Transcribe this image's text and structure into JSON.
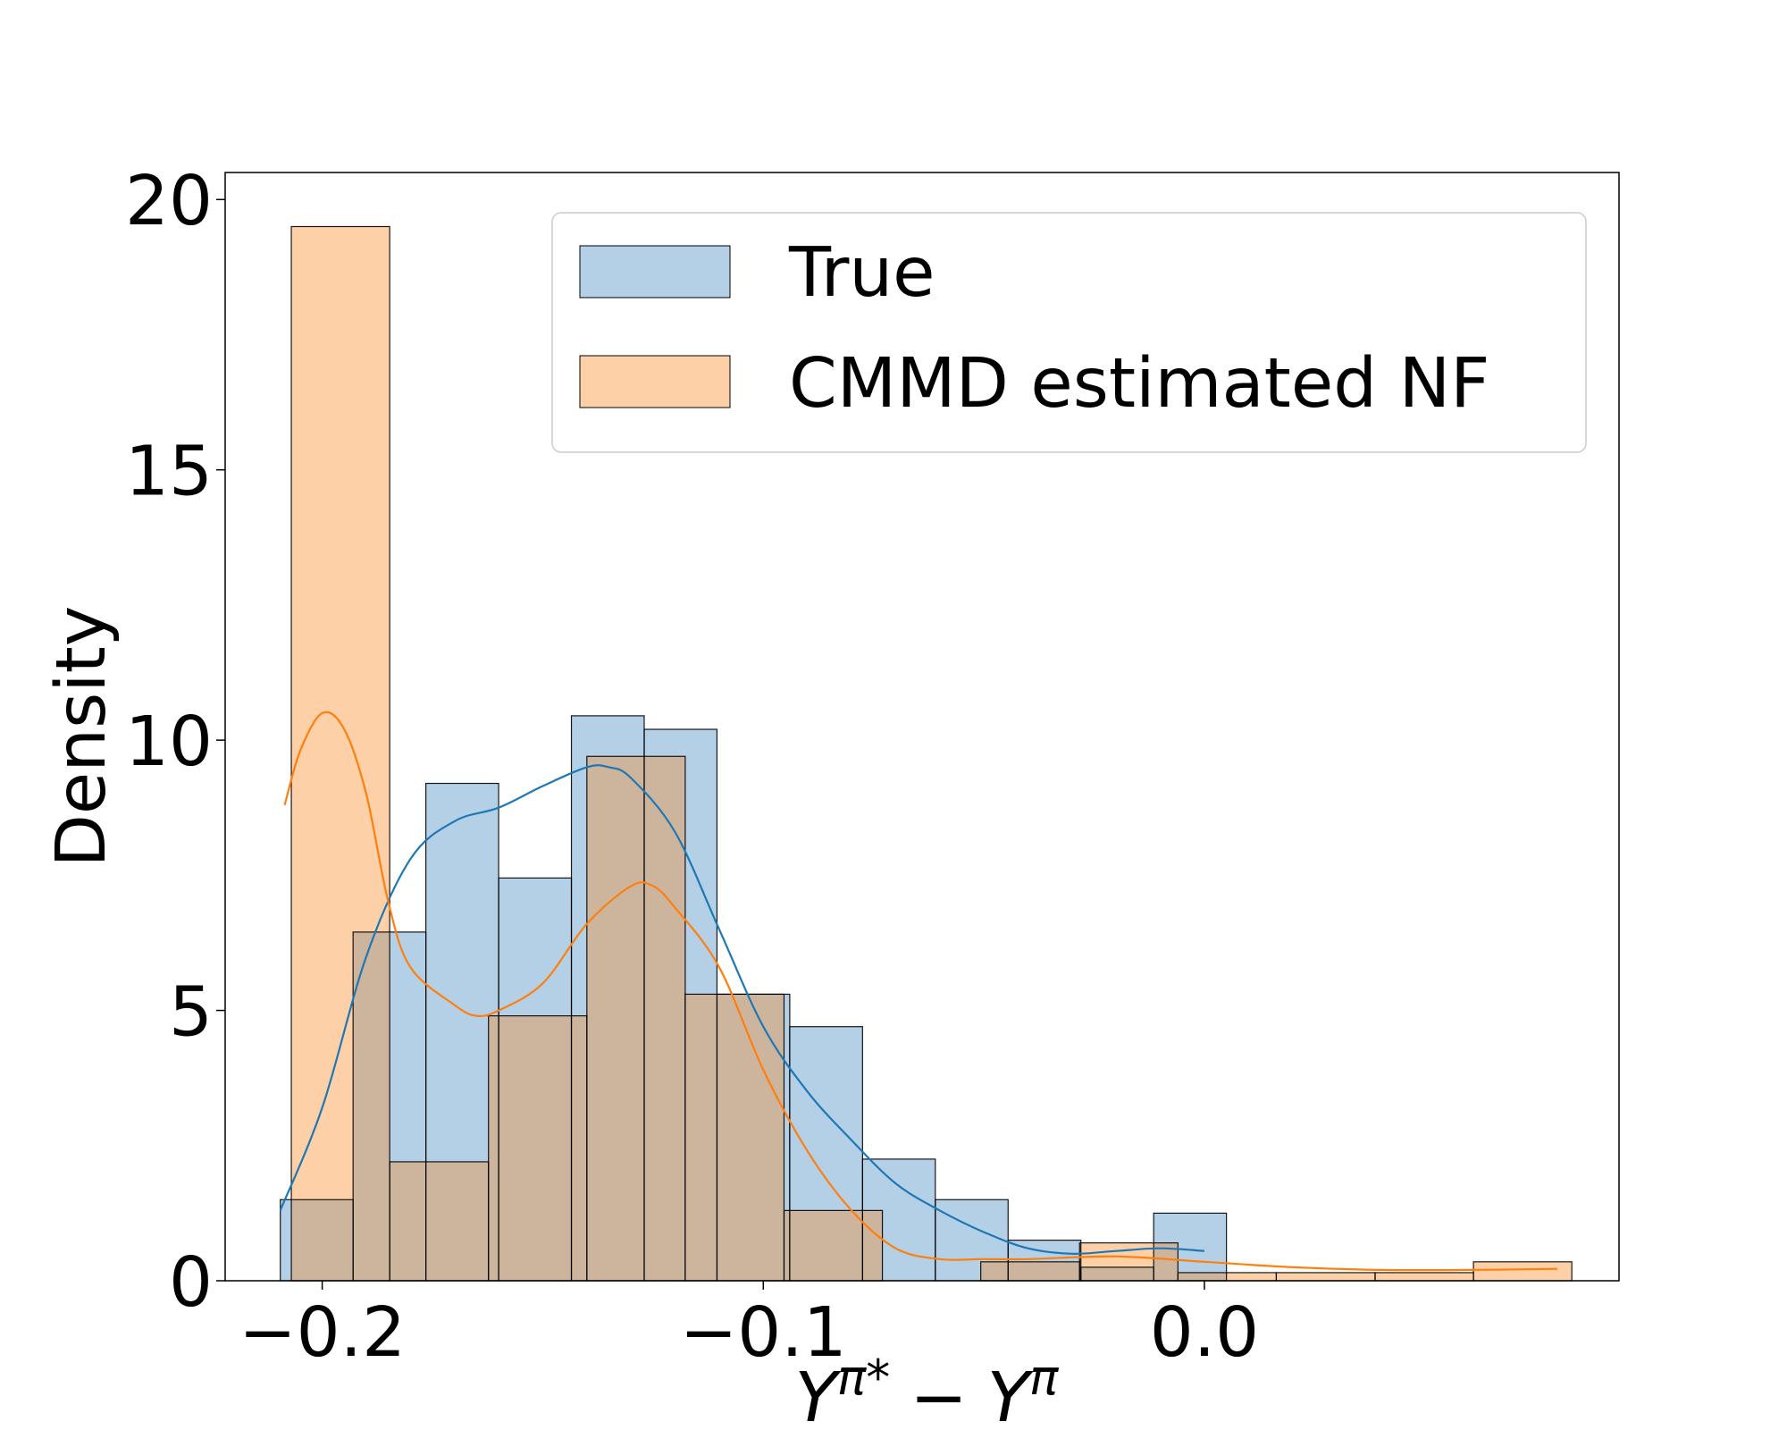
{
  "chart_data": {
    "type": "histogram",
    "title": "",
    "xlabel": {
      "base": "Y",
      "sup1": "π*",
      "minus": "−",
      "base2": "Y",
      "sup2": "π"
    },
    "ylabel": "Density",
    "xlim": [
      -0.222,
      0.094
    ],
    "ylim": [
      0,
      20.5
    ],
    "xticks": [
      -0.2,
      -0.1,
      0.0
    ],
    "xtick_labels": [
      "−0.2",
      "−0.1",
      "0.0"
    ],
    "yticks": [
      0,
      5,
      10,
      15,
      20
    ],
    "ytick_labels": [
      "0",
      "5",
      "10",
      "15",
      "20"
    ],
    "grid": false,
    "legend_position": "top-right",
    "colors": {
      "true_fill": "#b4d0e6",
      "nf_fill": "#fdd0a8",
      "overlap_fill": "#cdb59d",
      "true_line": "#1f77b4",
      "nf_line": "#ff7f0e",
      "edge": "#000000"
    },
    "series": [
      {
        "name": "True",
        "bin_edges": [
          -0.2095,
          -0.193,
          -0.1765,
          -0.16,
          -0.1435,
          -0.127,
          -0.1105,
          -0.094,
          -0.0775,
          -0.061,
          -0.0445,
          -0.028,
          -0.0115,
          0.005
        ],
        "values": [
          1.5,
          6.45,
          9.2,
          7.45,
          10.45,
          10.2,
          5.3,
          4.7,
          2.25,
          1.5,
          0.75,
          0.25,
          1.25
        ],
        "kde": [
          [
            -0.2095,
            1.3
          ],
          [
            -0.2,
            3.2
          ],
          [
            -0.19,
            6.0
          ],
          [
            -0.18,
            7.8
          ],
          [
            -0.17,
            8.5
          ],
          [
            -0.16,
            8.75
          ],
          [
            -0.15,
            9.15
          ],
          [
            -0.14,
            9.5
          ],
          [
            -0.135,
            9.5
          ],
          [
            -0.13,
            9.3
          ],
          [
            -0.12,
            8.3
          ],
          [
            -0.11,
            6.5
          ],
          [
            -0.1,
            4.7
          ],
          [
            -0.09,
            3.5
          ],
          [
            -0.08,
            2.6
          ],
          [
            -0.07,
            1.8
          ],
          [
            -0.06,
            1.3
          ],
          [
            -0.05,
            0.9
          ],
          [
            -0.04,
            0.6
          ],
          [
            -0.03,
            0.5
          ],
          [
            -0.02,
            0.55
          ],
          [
            -0.01,
            0.6
          ],
          [
            0.0,
            0.55
          ]
        ]
      },
      {
        "name": "CMMD estimated NF",
        "bin_edges": [
          -0.207,
          -0.1847,
          -0.1623,
          -0.14,
          -0.1177,
          -0.0953,
          -0.073,
          -0.0507,
          -0.0283,
          -0.006,
          0.0163,
          0.0387,
          0.061,
          0.0833
        ],
        "values": [
          19.5,
          2.2,
          4.9,
          9.7,
          5.3,
          1.3,
          0.0,
          0.35,
          0.7,
          0.15,
          0.15,
          0.15,
          0.35
        ],
        "kde": [
          [
            -0.2085,
            8.8
          ],
          [
            -0.205,
            9.8
          ],
          [
            -0.2,
            10.5
          ],
          [
            -0.195,
            10.2
          ],
          [
            -0.19,
            9.0
          ],
          [
            -0.185,
            7.0
          ],
          [
            -0.18,
            5.8
          ],
          [
            -0.17,
            5.1
          ],
          [
            -0.165,
            4.9
          ],
          [
            -0.16,
            5.0
          ],
          [
            -0.15,
            5.5
          ],
          [
            -0.14,
            6.6
          ],
          [
            -0.13,
            7.3
          ],
          [
            -0.125,
            7.3
          ],
          [
            -0.12,
            6.9
          ],
          [
            -0.11,
            5.8
          ],
          [
            -0.1,
            3.9
          ],
          [
            -0.09,
            2.4
          ],
          [
            -0.08,
            1.3
          ],
          [
            -0.07,
            0.6
          ],
          [
            -0.06,
            0.4
          ],
          [
            -0.05,
            0.4
          ],
          [
            -0.04,
            0.4
          ],
          [
            -0.02,
            0.45
          ],
          [
            0.0,
            0.35
          ],
          [
            0.02,
            0.25
          ],
          [
            0.04,
            0.2
          ],
          [
            0.06,
            0.2
          ],
          [
            0.08,
            0.22
          ]
        ]
      }
    ]
  }
}
